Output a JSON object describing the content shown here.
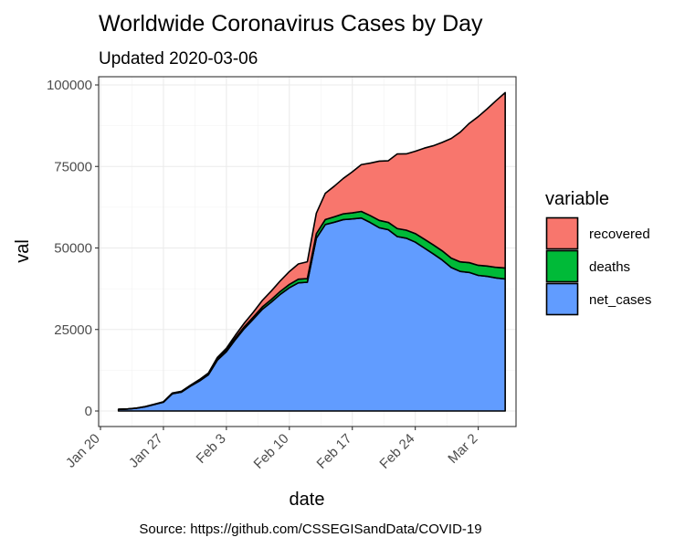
{
  "chart_data": {
    "type": "area",
    "stacked": true,
    "title": "Worldwide Coronavirus Cases by Day",
    "subtitle": "Updated 2020-03-06",
    "xlabel": "date",
    "ylabel": "val",
    "caption": "Source: https://github.com/CSSEGISandData/COVID-19",
    "legend_title": "variable",
    "legend_position": "right",
    "grid": true,
    "xlim": [
      "2020-01-20",
      "2020-03-06"
    ],
    "ylim": [
      0,
      100000
    ],
    "x_ticks": [
      "2020-01-20",
      "2020-01-27",
      "2020-02-03",
      "2020-02-10",
      "2020-02-17",
      "2020-02-24",
      "2020-03-02"
    ],
    "x_tick_labels": [
      "Jan 20",
      "Jan 27",
      "Feb 3",
      "Feb 10",
      "Feb 17",
      "Feb 24",
      "Mar  2"
    ],
    "y_ticks": [
      0,
      25000,
      50000,
      75000,
      100000
    ],
    "y_tick_labels": [
      "0",
      "25000",
      "50000",
      "75000",
      "100000"
    ],
    "x": [
      "2020-01-22",
      "2020-01-23",
      "2020-01-24",
      "2020-01-25",
      "2020-01-26",
      "2020-01-27",
      "2020-01-28",
      "2020-01-29",
      "2020-01-30",
      "2020-01-31",
      "2020-02-01",
      "2020-02-02",
      "2020-02-03",
      "2020-02-04",
      "2020-02-05",
      "2020-02-06",
      "2020-02-07",
      "2020-02-08",
      "2020-02-09",
      "2020-02-10",
      "2020-02-11",
      "2020-02-12",
      "2020-02-13",
      "2020-02-14",
      "2020-02-15",
      "2020-02-16",
      "2020-02-17",
      "2020-02-18",
      "2020-02-19",
      "2020-02-20",
      "2020-02-21",
      "2020-02-22",
      "2020-02-23",
      "2020-02-24",
      "2020-02-25",
      "2020-02-26",
      "2020-02-27",
      "2020-02-28",
      "2020-02-29",
      "2020-03-01",
      "2020-03-02",
      "2020-03-03",
      "2020-03-04",
      "2020-03-05"
    ],
    "series": [
      {
        "name": "net_cases",
        "color": "#619cff",
        "values": [
          500,
          600,
          850,
          1300,
          2000,
          2700,
          5300,
          5800,
          7600,
          9200,
          11100,
          15600,
          18200,
          21900,
          25300,
          28200,
          31200,
          33400,
          35800,
          37800,
          39300,
          39500,
          53000,
          57200,
          57900,
          58700,
          58900,
          59200,
          57800,
          56200,
          55600,
          53500,
          53000,
          51800,
          50000,
          48200,
          46300,
          44000,
          42800,
          42500,
          41600,
          41300,
          40800,
          40500
        ]
      },
      {
        "name": "deaths",
        "color": "#00ba38",
        "values": [
          17,
          18,
          26,
          42,
          56,
          82,
          131,
          133,
          171,
          213,
          259,
          362,
          426,
          492,
          564,
          634,
          719,
          806,
          906,
          1013,
          1113,
          1118,
          1371,
          1523,
          1666,
          1770,
          1868,
          2007,
          2122,
          2247,
          2251,
          2458,
          2469,
          2629,
          2708,
          2770,
          2814,
          2872,
          2941,
          2996,
          3085,
          3160,
          3254,
          3348
        ]
      },
      {
        "name": "recovered",
        "color": "#f8766d",
        "values": [
          28,
          30,
          36,
          39,
          52,
          61,
          107,
          126,
          143,
          222,
          284,
          472,
          623,
          852,
          1124,
          1487,
          2011,
          2616,
          3244,
          3946,
          4683,
          5150,
          6295,
          8058,
          9395,
          10865,
          12583,
          14352,
          16121,
          18177,
          18890,
          22886,
          23394,
          25227,
          27905,
          30384,
          33277,
          36711,
          39782,
          42716,
          45602,
          48229,
          51171,
          53797
        ]
      }
    ]
  }
}
